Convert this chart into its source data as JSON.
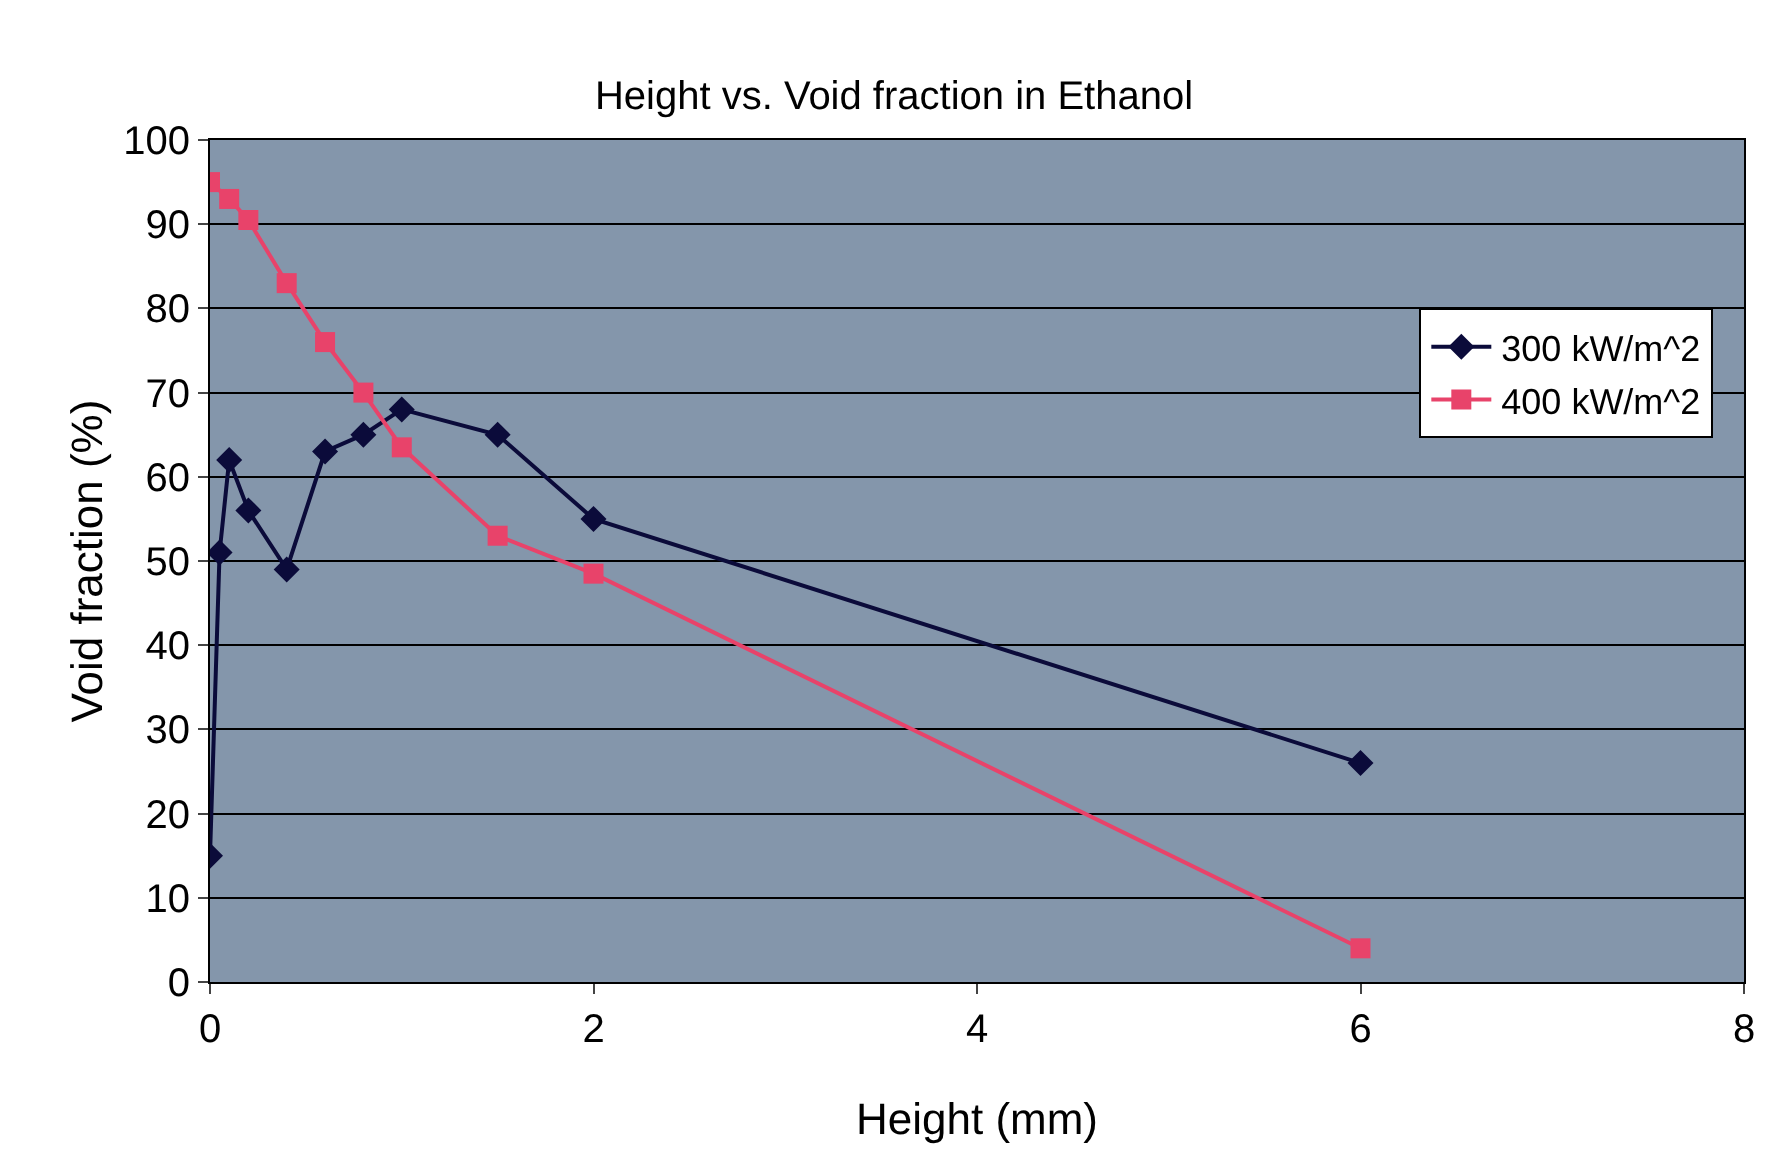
{
  "chart_data": {
    "type": "line",
    "title": "Height vs. Void fraction in Ethanol",
    "xlabel": "Height (mm)",
    "ylabel": "Void fraction (%)",
    "xlim": [
      0,
      8
    ],
    "xticks": [
      0,
      2,
      4,
      6,
      8
    ],
    "ylim": [
      0,
      100
    ],
    "yticks": [
      0,
      10,
      20,
      30,
      40,
      50,
      60,
      70,
      80,
      90,
      100
    ],
    "grid": "y",
    "legend": "top right",
    "series": [
      {
        "name": "300 kW/m^2",
        "color": "#0b0b3a",
        "marker": "diamond",
        "x": [
          0,
          0.05,
          0.1,
          0.2,
          0.4,
          0.6,
          0.8,
          1,
          1.5,
          2,
          6
        ],
        "values": [
          15,
          51,
          62,
          56,
          49,
          63,
          65,
          68,
          65,
          55,
          26
        ]
      },
      {
        "name": "400 kW/m^2",
        "color": "#e8436a",
        "marker": "square",
        "x": [
          0,
          0.1,
          0.2,
          0.4,
          0.6,
          0.8,
          1,
          1.5,
          2,
          6
        ],
        "values": [
          95,
          93,
          90.5,
          83,
          76,
          70,
          63.5,
          53,
          48.5,
          4
        ]
      }
    ]
  }
}
